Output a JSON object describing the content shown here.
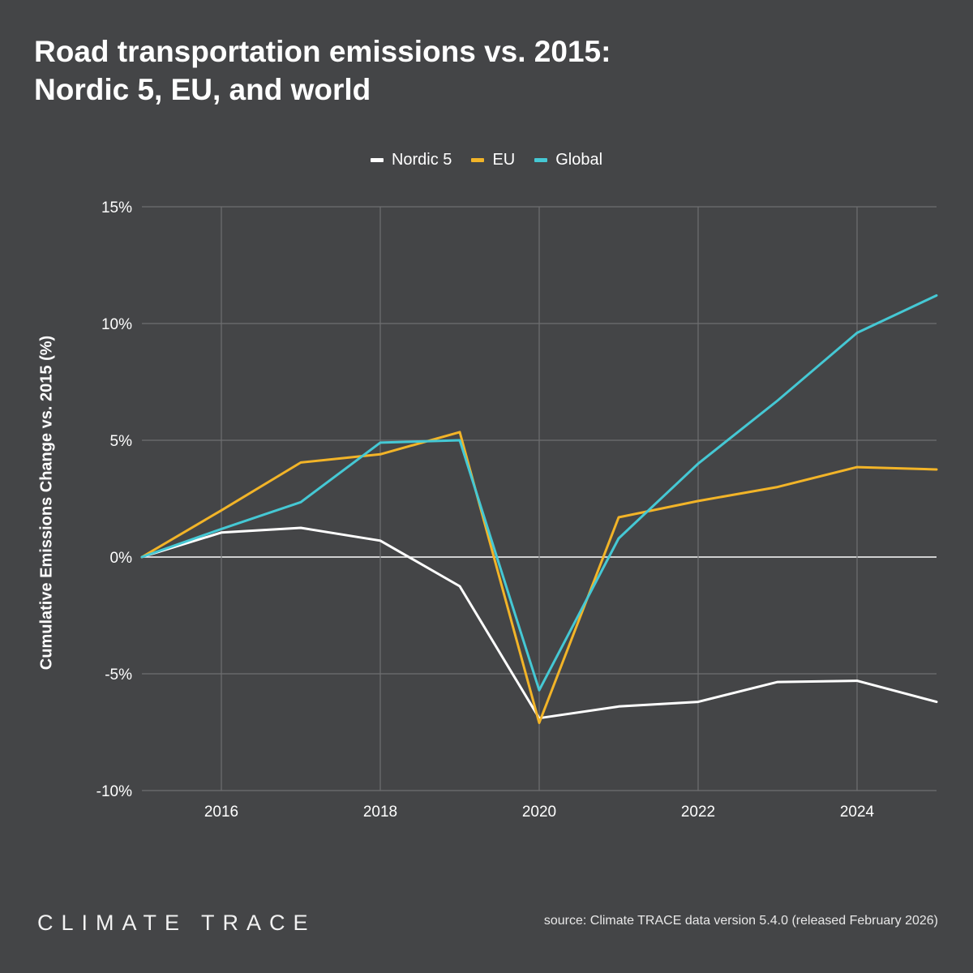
{
  "title_lines": [
    "Road transportation emissions vs. 2015:",
    "Nordic 5, EU, and world"
  ],
  "brand": "CLIMATE TRACE",
  "source": "source: Climate TRACE data version 5.4.0 (released February 2026)",
  "colors": {
    "background": "#444547",
    "grid": "#6e6f71",
    "nordic": "#ffffff",
    "eu": "#f2b428",
    "global": "#45c8d4"
  },
  "chart_data": {
    "type": "line",
    "title": "Road transportation emissions vs. 2015: Nordic 5, EU, and world",
    "xlabel": "",
    "ylabel": "Cumulative Emissions Change vs. 2015 (%)",
    "x": [
      2015,
      2016,
      2017,
      2018,
      2019,
      2020,
      2021,
      2022,
      2023,
      2024,
      2025
    ],
    "xlim": [
      2015,
      2025
    ],
    "ylim": [
      -10,
      15
    ],
    "x_ticks": [
      2016,
      2018,
      2020,
      2022,
      2024
    ],
    "x_tick_labels": [
      "2016",
      "2018",
      "2020",
      "2022",
      "2024"
    ],
    "y_ticks": [
      -10,
      -5,
      0,
      5,
      10,
      15
    ],
    "y_tick_labels": [
      "-10%",
      "-5%",
      "0%",
      "5%",
      "10%",
      "15%"
    ],
    "grid": true,
    "legend_position": "top-center",
    "series": [
      {
        "name": "Nordic 5",
        "key": "nordic",
        "values": [
          0,
          1.05,
          1.25,
          0.7,
          -1.25,
          -6.9,
          -6.4,
          -6.2,
          -5.35,
          -5.3,
          -6.2
        ]
      },
      {
        "name": "EU",
        "key": "eu",
        "values": [
          0,
          2.0,
          4.05,
          4.4,
          5.35,
          -7.1,
          1.7,
          2.4,
          3.0,
          3.85,
          3.75
        ]
      },
      {
        "name": "Global",
        "key": "global",
        "values": [
          0,
          1.2,
          2.35,
          4.9,
          5.0,
          -5.7,
          0.8,
          4.0,
          6.7,
          9.6,
          11.2
        ]
      }
    ]
  }
}
